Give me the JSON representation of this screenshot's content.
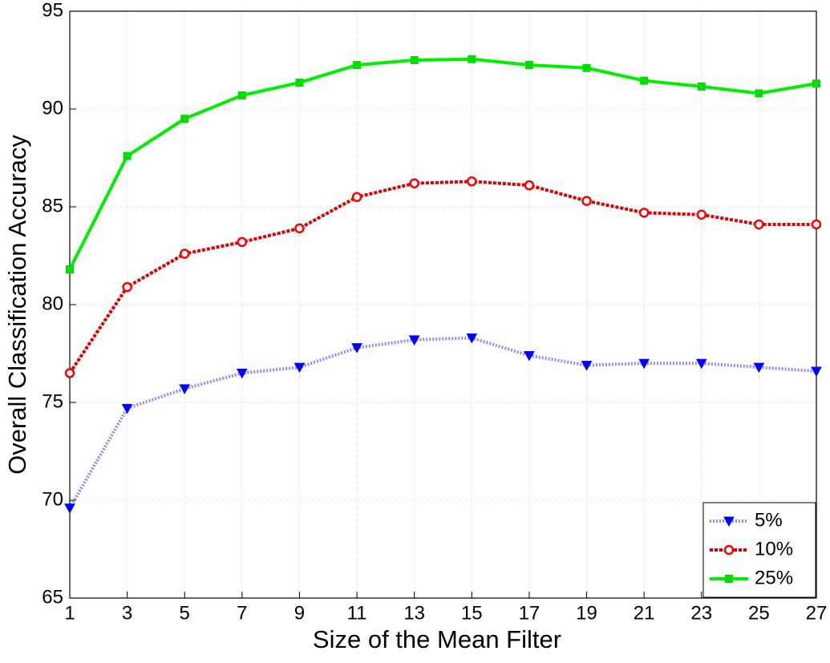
{
  "chart_data": {
    "type": "line",
    "xlabel": "Size of the Mean Filter",
    "ylabel": "Overall Classification Accuracy",
    "x": [
      1,
      3,
      5,
      7,
      9,
      11,
      13,
      15,
      17,
      19,
      21,
      23,
      25,
      27
    ],
    "xlim": [
      1,
      27
    ],
    "xticks": [
      1,
      3,
      5,
      7,
      9,
      11,
      13,
      15,
      17,
      19,
      21,
      23,
      25,
      27
    ],
    "ylim": [
      65,
      95
    ],
    "yticks": [
      65,
      70,
      75,
      80,
      85,
      90,
      95
    ],
    "grid": true,
    "legend": "lower right",
    "series": [
      {
        "name": "5%",
        "color": "#0000ff",
        "line_color": "#8c8cff",
        "marker": "triangle-down",
        "dash": "dotted",
        "values": [
          69.6,
          74.7,
          75.7,
          76.5,
          76.8,
          77.8,
          78.2,
          78.3,
          77.4,
          76.9,
          77.0,
          77.0,
          76.8,
          76.6
        ]
      },
      {
        "name": "10%",
        "color": "#ff0000",
        "line_color": "#e00000",
        "marker": "circle",
        "dash": "dashed",
        "values": [
          76.5,
          80.9,
          82.6,
          83.2,
          83.9,
          85.5,
          86.2,
          86.3,
          86.1,
          85.3,
          84.7,
          84.6,
          84.1,
          84.1
        ]
      },
      {
        "name": "25%",
        "color": "#00dd00",
        "line_color": "#00ee00",
        "marker": "square",
        "dash": "solid",
        "values": [
          81.8,
          87.6,
          89.5,
          90.7,
          91.35,
          92.25,
          92.5,
          92.55,
          92.25,
          92.1,
          91.45,
          91.15,
          90.8,
          91.3
        ]
      }
    ]
  }
}
